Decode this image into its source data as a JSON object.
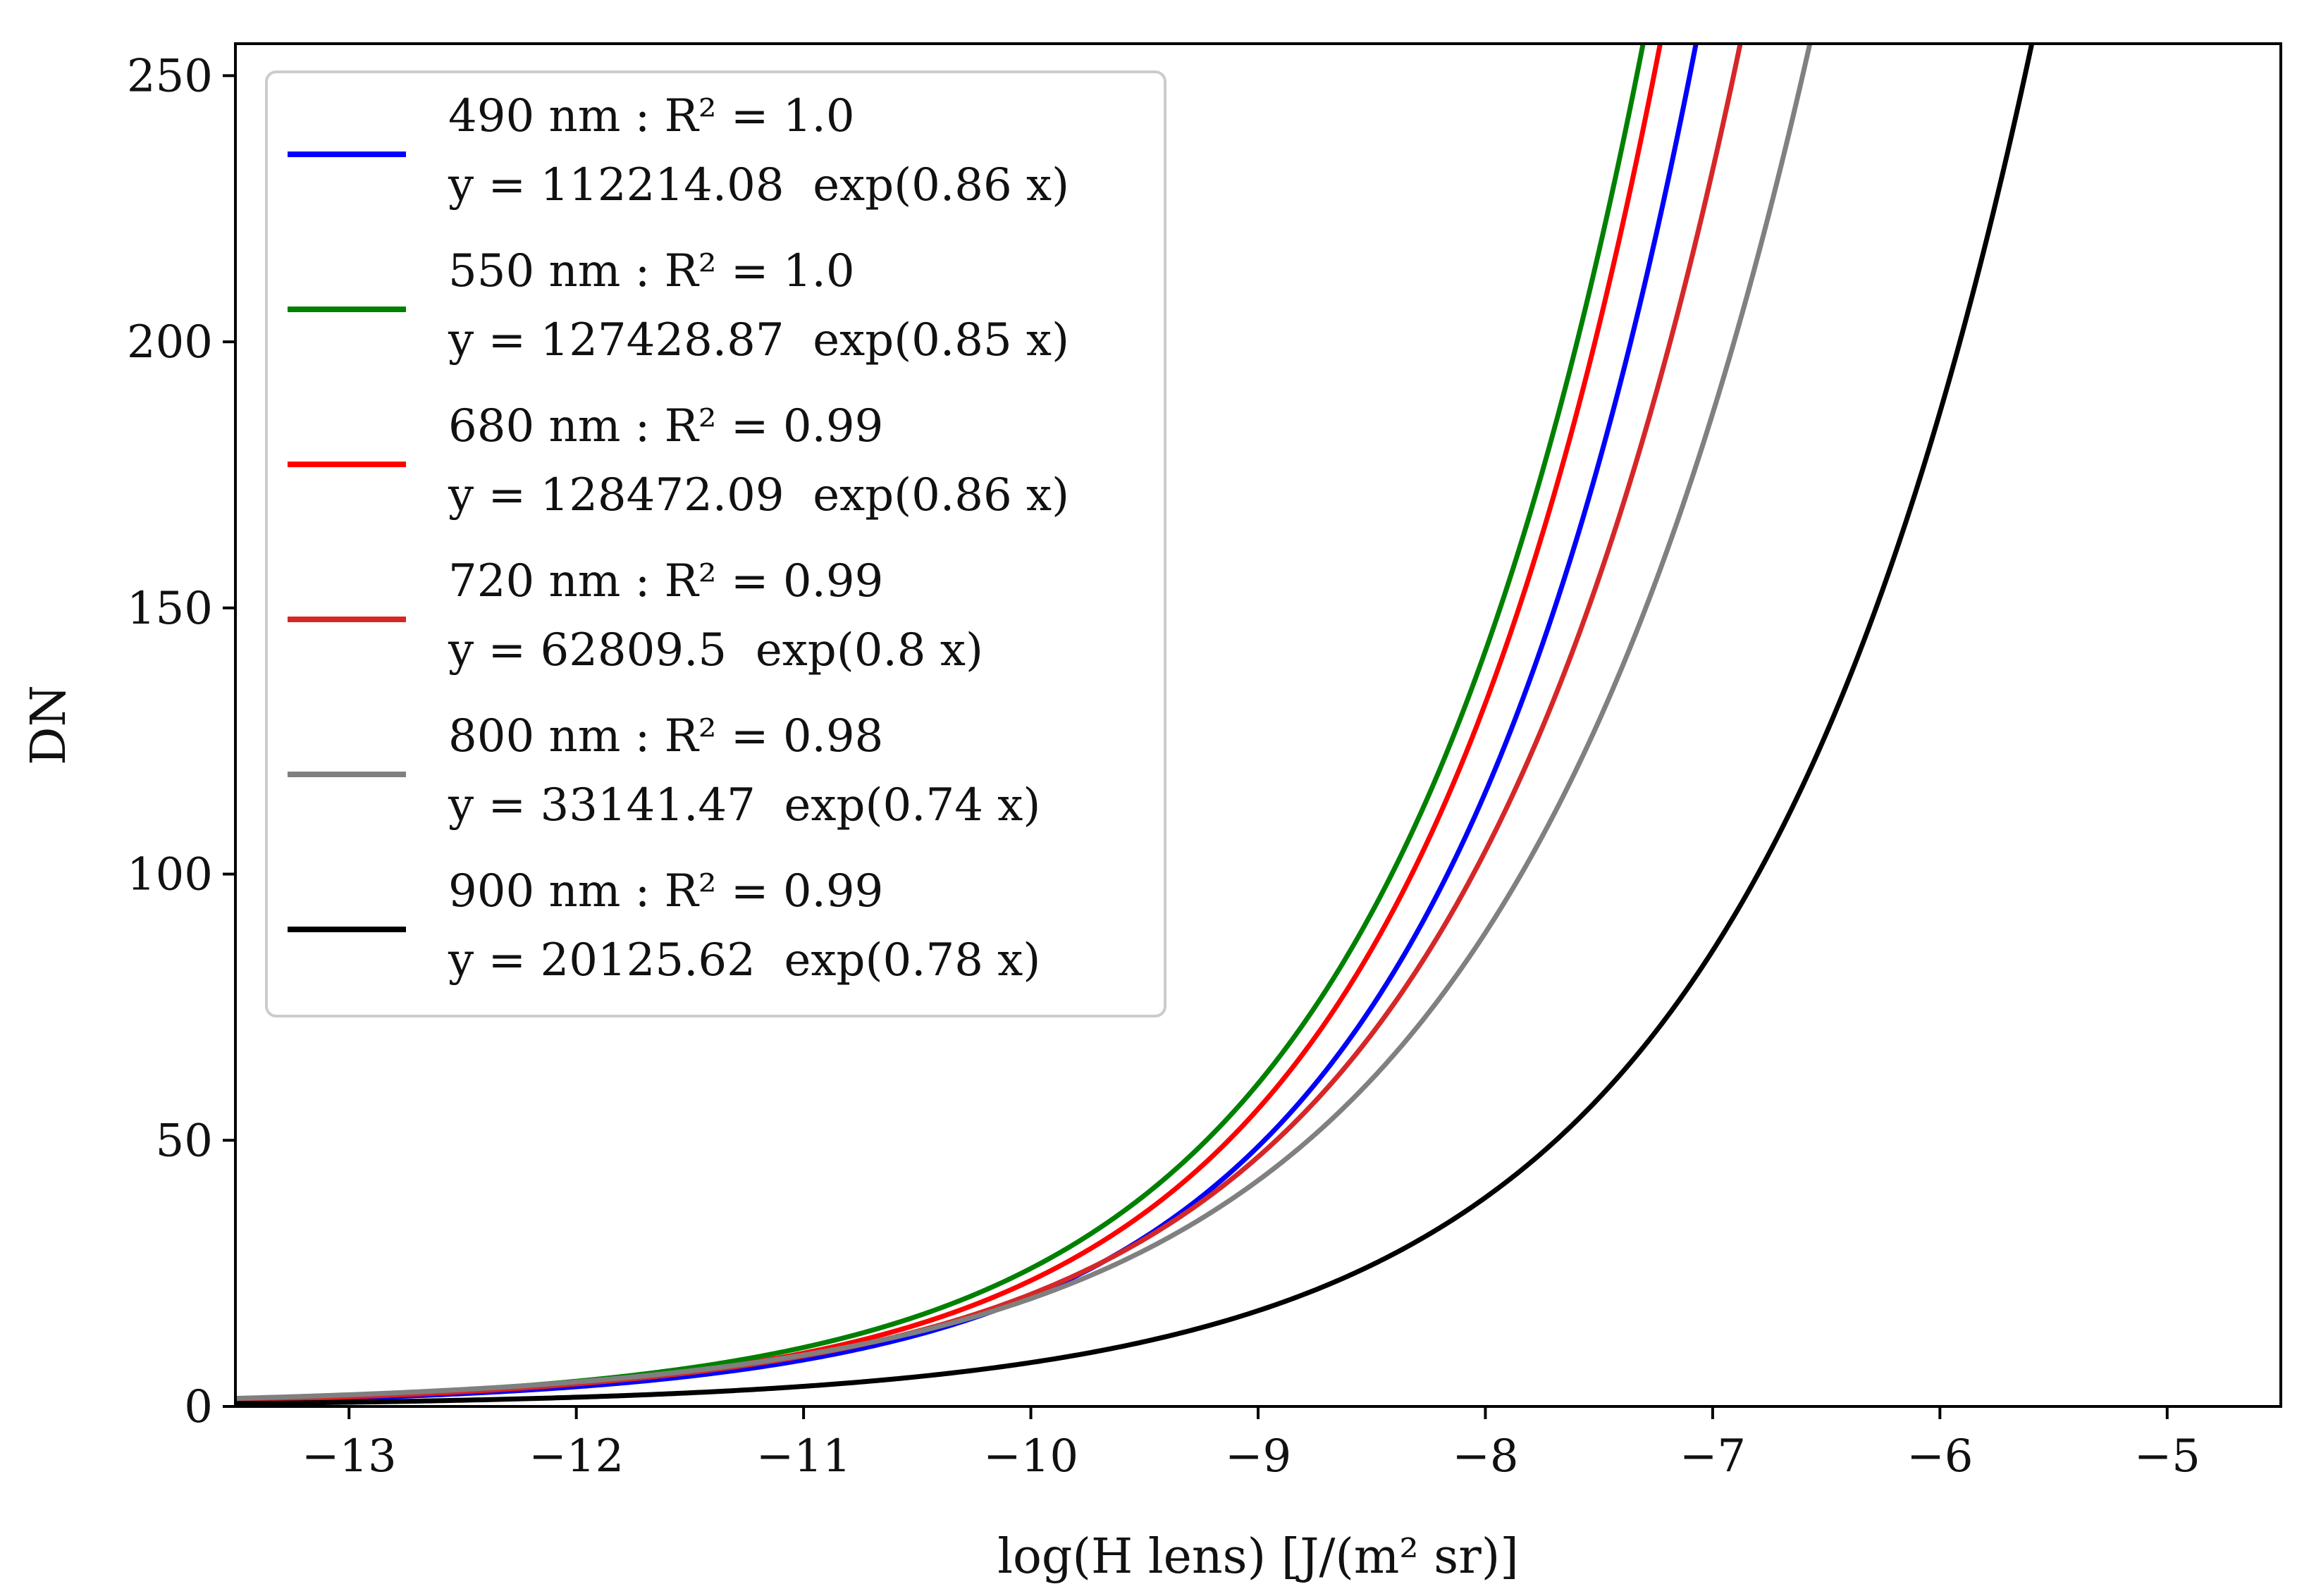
{
  "chart_data": {
    "type": "line",
    "title": "",
    "xlabel": "log(H lens) [J/(m² sr)]",
    "ylabel": "DN",
    "xlim": [
      -13.5,
      -4.5
    ],
    "ylim": [
      0,
      256
    ],
    "x_ticks": [
      -13,
      -12,
      -11,
      -10,
      -9,
      -8,
      -7,
      -6,
      -5
    ],
    "x_tick_labels": [
      "−13",
      "−12",
      "−11",
      "−10",
      "−9",
      "−8",
      "−7",
      "−6",
      "−5"
    ],
    "y_ticks": [
      0,
      50,
      100,
      150,
      200,
      250
    ],
    "y_tick_labels": [
      "0",
      "50",
      "100",
      "150",
      "200",
      "250"
    ],
    "grid": false,
    "legend_position": "top-left",
    "series": [
      {
        "name": "490 nm : R² = 1.0",
        "equation": "y = 112214.08  exp(0.86 x)",
        "color": "#0000ff",
        "a": 112214.08,
        "b": 0.86
      },
      {
        "name": "550 nm : R² = 1.0",
        "equation": "y = 127428.87  exp(0.85 x)",
        "color": "#008000",
        "a": 127428.87,
        "b": 0.85
      },
      {
        "name": "680 nm : R² = 0.99",
        "equation": "y = 128472.09  exp(0.86 x)",
        "color": "#ff0000",
        "a": 128472.09,
        "b": 0.86
      },
      {
        "name": "720 nm : R² = 0.99",
        "equation": "y = 62809.5  exp(0.8 x)",
        "color": "#d62728",
        "a": 62809.5,
        "b": 0.8
      },
      {
        "name": "800 nm : R² = 0.98",
        "equation": "y = 33141.47  exp(0.74 x)",
        "color": "#808080",
        "a": 33141.47,
        "b": 0.74
      },
      {
        "name": "900 nm : R² = 0.99",
        "equation": "y = 20125.62  exp(0.78 x)",
        "color": "#000000",
        "a": 20125.62,
        "b": 0.78
      }
    ]
  }
}
